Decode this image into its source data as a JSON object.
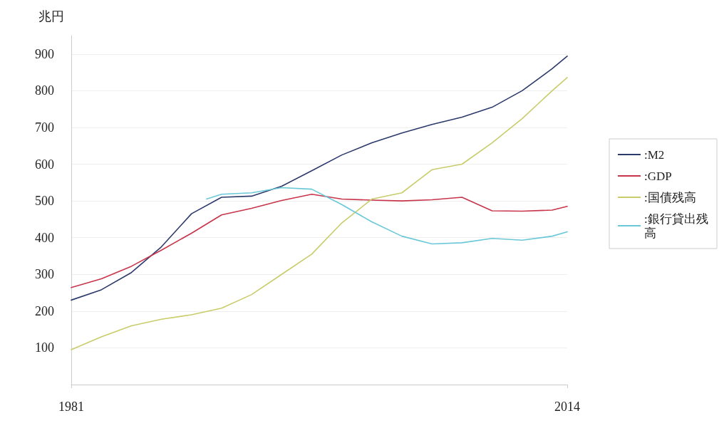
{
  "chart_data": {
    "type": "line",
    "ylabel": "兆円",
    "x": [
      1981,
      1983,
      1985,
      1987,
      1989,
      1991,
      1993,
      1995,
      1997,
      1999,
      2001,
      2003,
      2005,
      2007,
      2009,
      2011,
      2013,
      2014
    ],
    "series": [
      {
        "name": ":M2",
        "color": "#2b3a6b",
        "values": [
          230,
          258,
          305,
          375,
          465,
          510,
          513,
          540,
          582,
          625,
          658,
          685,
          708,
          728,
          755,
          800,
          860,
          894
        ]
      },
      {
        "name": ":GDP",
        "color": "#c8344a",
        "values": [
          264,
          288,
          322,
          366,
          412,
          462,
          480,
          501,
          518,
          505,
          502,
          500,
          503,
          510,
          473,
          472,
          475,
          485
        ]
      },
      {
        "name": ":国債残高",
        "color": "#c8cc6a",
        "values": [
          95,
          130,
          160,
          178,
          190,
          208,
          245,
          300,
          355,
          440,
          505,
          522,
          585,
          600,
          658,
          724,
          800,
          836
        ]
      },
      {
        "name": ":銀行貸出残高",
        "color": "#6ac8d8",
        "x": [
          1990,
          1991,
          1993,
          1995,
          1997,
          1999,
          2001,
          2003,
          2005,
          2007,
          2009,
          2011,
          2013,
          2014
        ],
        "values": [
          505,
          518,
          522,
          536,
          532,
          490,
          443,
          404,
          383,
          386,
          398,
          393,
          404,
          416
        ]
      }
    ],
    "xlim": [
      1981,
      2014
    ],
    "xticks": [
      1981,
      2014
    ],
    "ylim": [
      0,
      950
    ],
    "yticks": [
      100,
      200,
      300,
      400,
      500,
      600,
      700,
      800,
      900
    ],
    "grid": "y",
    "legend": "right",
    "marker": "none",
    "line_style": "solid"
  }
}
